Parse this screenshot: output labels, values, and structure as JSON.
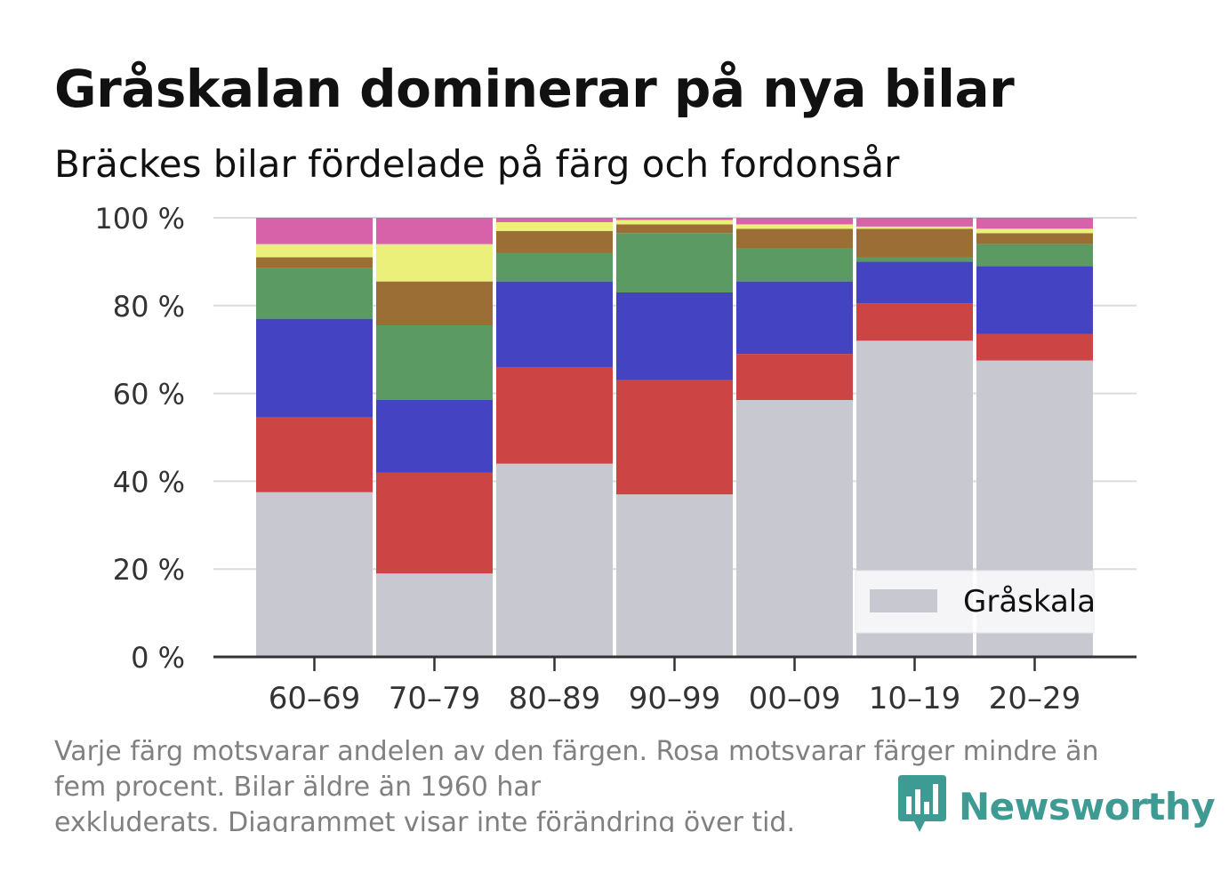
{
  "header": {
    "title": "Gråskalan dominerar på nya bilar",
    "subtitle": "Bräckes bilar fördelade på färg och fordonsår"
  },
  "footnote": {
    "line1": "Varje färg motsvarar andelen av den färgen. Rosa motsvarar färger mindre än",
    "line2": "fem procent. Bilar äldre än 1960 har",
    "line3": "exkluderats. Diagrammet visar inte förändring över tid."
  },
  "brand": {
    "name": "Newsworthy",
    "color": "#3e9b94",
    "icon": "bar-chart-speech-bubble-icon"
  },
  "chart_data": {
    "type": "bar",
    "stacked": true,
    "categories": [
      "60–69",
      "70–79",
      "80–89",
      "90–99",
      "00–09",
      "10–19",
      "20–29"
    ],
    "series": [
      {
        "name": "Gråskala",
        "color": "#c8c8d0",
        "values": [
          37.5,
          19,
          44,
          37,
          58.5,
          72,
          67.5
        ]
      },
      {
        "color": "#cc4444",
        "values": [
          17,
          23,
          22,
          26,
          10.5,
          8.5,
          6
        ]
      },
      {
        "color": "#4444c2",
        "values": [
          22.5,
          16.5,
          19.5,
          20,
          16.5,
          9.5,
          15.5
        ]
      },
      {
        "color": "#5b9a62",
        "values": [
          11.5,
          17,
          6.5,
          13.5,
          7.5,
          1,
          5
        ]
      },
      {
        "color": "#9a6e34",
        "values": [
          2.5,
          10,
          5,
          2,
          4.5,
          6.5,
          2.5
        ]
      },
      {
        "color": "#eaf07a",
        "values": [
          3,
          8.5,
          2,
          1,
          1,
          0.5,
          1
        ]
      },
      {
        "color": "#d862aa",
        "values": [
          6,
          6,
          1,
          0.5,
          1.5,
          2,
          2.5
        ]
      }
    ],
    "y_ticks": [
      "0 %",
      "20 %",
      "40 %",
      "60 %",
      "80 %",
      "100 %"
    ],
    "ylim": [
      0,
      100
    ],
    "grid": true,
    "legend_position": "bottom-right"
  }
}
